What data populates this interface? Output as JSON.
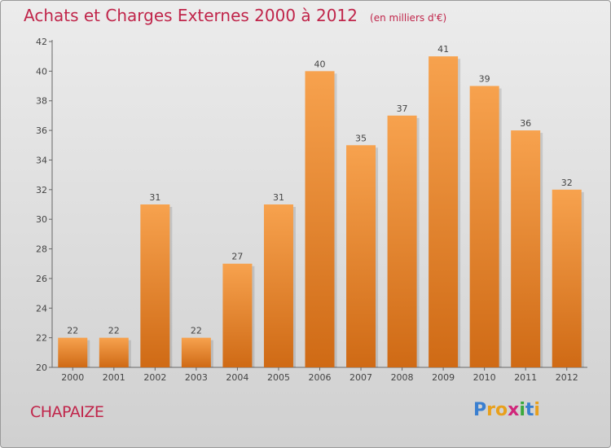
{
  "chart_data": {
    "type": "bar",
    "title": "Achats et Charges Externes 2000 à 2012",
    "subtitle": "(en milliers d'€)",
    "categories": [
      "2000",
      "2001",
      "2002",
      "2003",
      "2004",
      "2005",
      "2006",
      "2007",
      "2008",
      "2009",
      "2010",
      "2011",
      "2012"
    ],
    "values": [
      22,
      22,
      31,
      22,
      27,
      31,
      40,
      35,
      37,
      41,
      39,
      36,
      32
    ],
    "ylim": [
      20,
      42
    ],
    "yticks": [
      20,
      22,
      24,
      26,
      28,
      30,
      32,
      34,
      36,
      38,
      40,
      42
    ],
    "grid": false,
    "bar_color_top": "#f7a24e",
    "bar_color_bottom": "#cf6a15"
  },
  "footer": {
    "commune": "CHAPAIZE",
    "logo_letters": [
      "P",
      "r",
      "o",
      "x",
      "i",
      "t",
      "i"
    ],
    "logo_colors": [
      "#3a7fd0",
      "#e8a01c",
      "#e8a01c",
      "#d0267a",
      "#3aa83c",
      "#3a7fd0",
      "#e8a01c"
    ]
  }
}
